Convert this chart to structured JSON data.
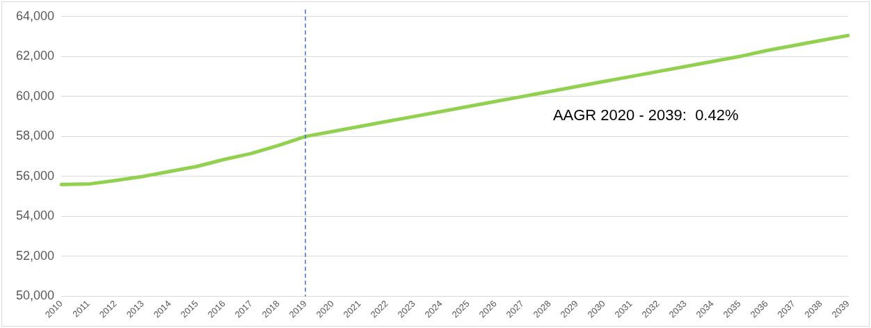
{
  "chart_data": {
    "type": "line",
    "categories": [
      "2010",
      "2011",
      "2012",
      "2013",
      "2014",
      "2015",
      "2016",
      "2017",
      "2018",
      "2019",
      "2020",
      "2021",
      "2022",
      "2023",
      "2024",
      "2025",
      "2026",
      "2027",
      "2028",
      "2029",
      "2030",
      "2031",
      "2032",
      "2033",
      "2034",
      "2035",
      "2036",
      "2037",
      "2038",
      "2039"
    ],
    "series": [
      {
        "color": "#92d050",
        "values": [
          55600,
          55620,
          55800,
          56000,
          56250,
          56500,
          56850,
          57150,
          57550,
          58000,
          58250,
          58500,
          58750,
          59000,
          59250,
          59500,
          59750,
          60000,
          60250,
          60500,
          60750,
          61000,
          61250,
          61500,
          61750,
          62000,
          62300,
          62550,
          62800,
          63050
        ]
      }
    ],
    "ylim": [
      50000,
      64000
    ],
    "yticks": [
      {
        "value": 50000,
        "label": "50,000"
      },
      {
        "value": 52000,
        "label": "52,000"
      },
      {
        "value": 54000,
        "label": "54,000"
      },
      {
        "value": 56000,
        "label": "56,000"
      },
      {
        "value": 58000,
        "label": "58,000"
      },
      {
        "value": 60000,
        "label": "60,000"
      },
      {
        "value": 62000,
        "label": "62,000"
      },
      {
        "value": 64000,
        "label": "64,000"
      }
    ],
    "grid": "y",
    "legend": false,
    "marker": "none",
    "line_style": "solid",
    "ref_lines": [
      {
        "axis": "x",
        "value": "2019",
        "color": "#4472c4",
        "line_style": "dashed"
      }
    ],
    "annotations": [
      "AAGR 2020 - 2039:  0.42%"
    ]
  }
}
